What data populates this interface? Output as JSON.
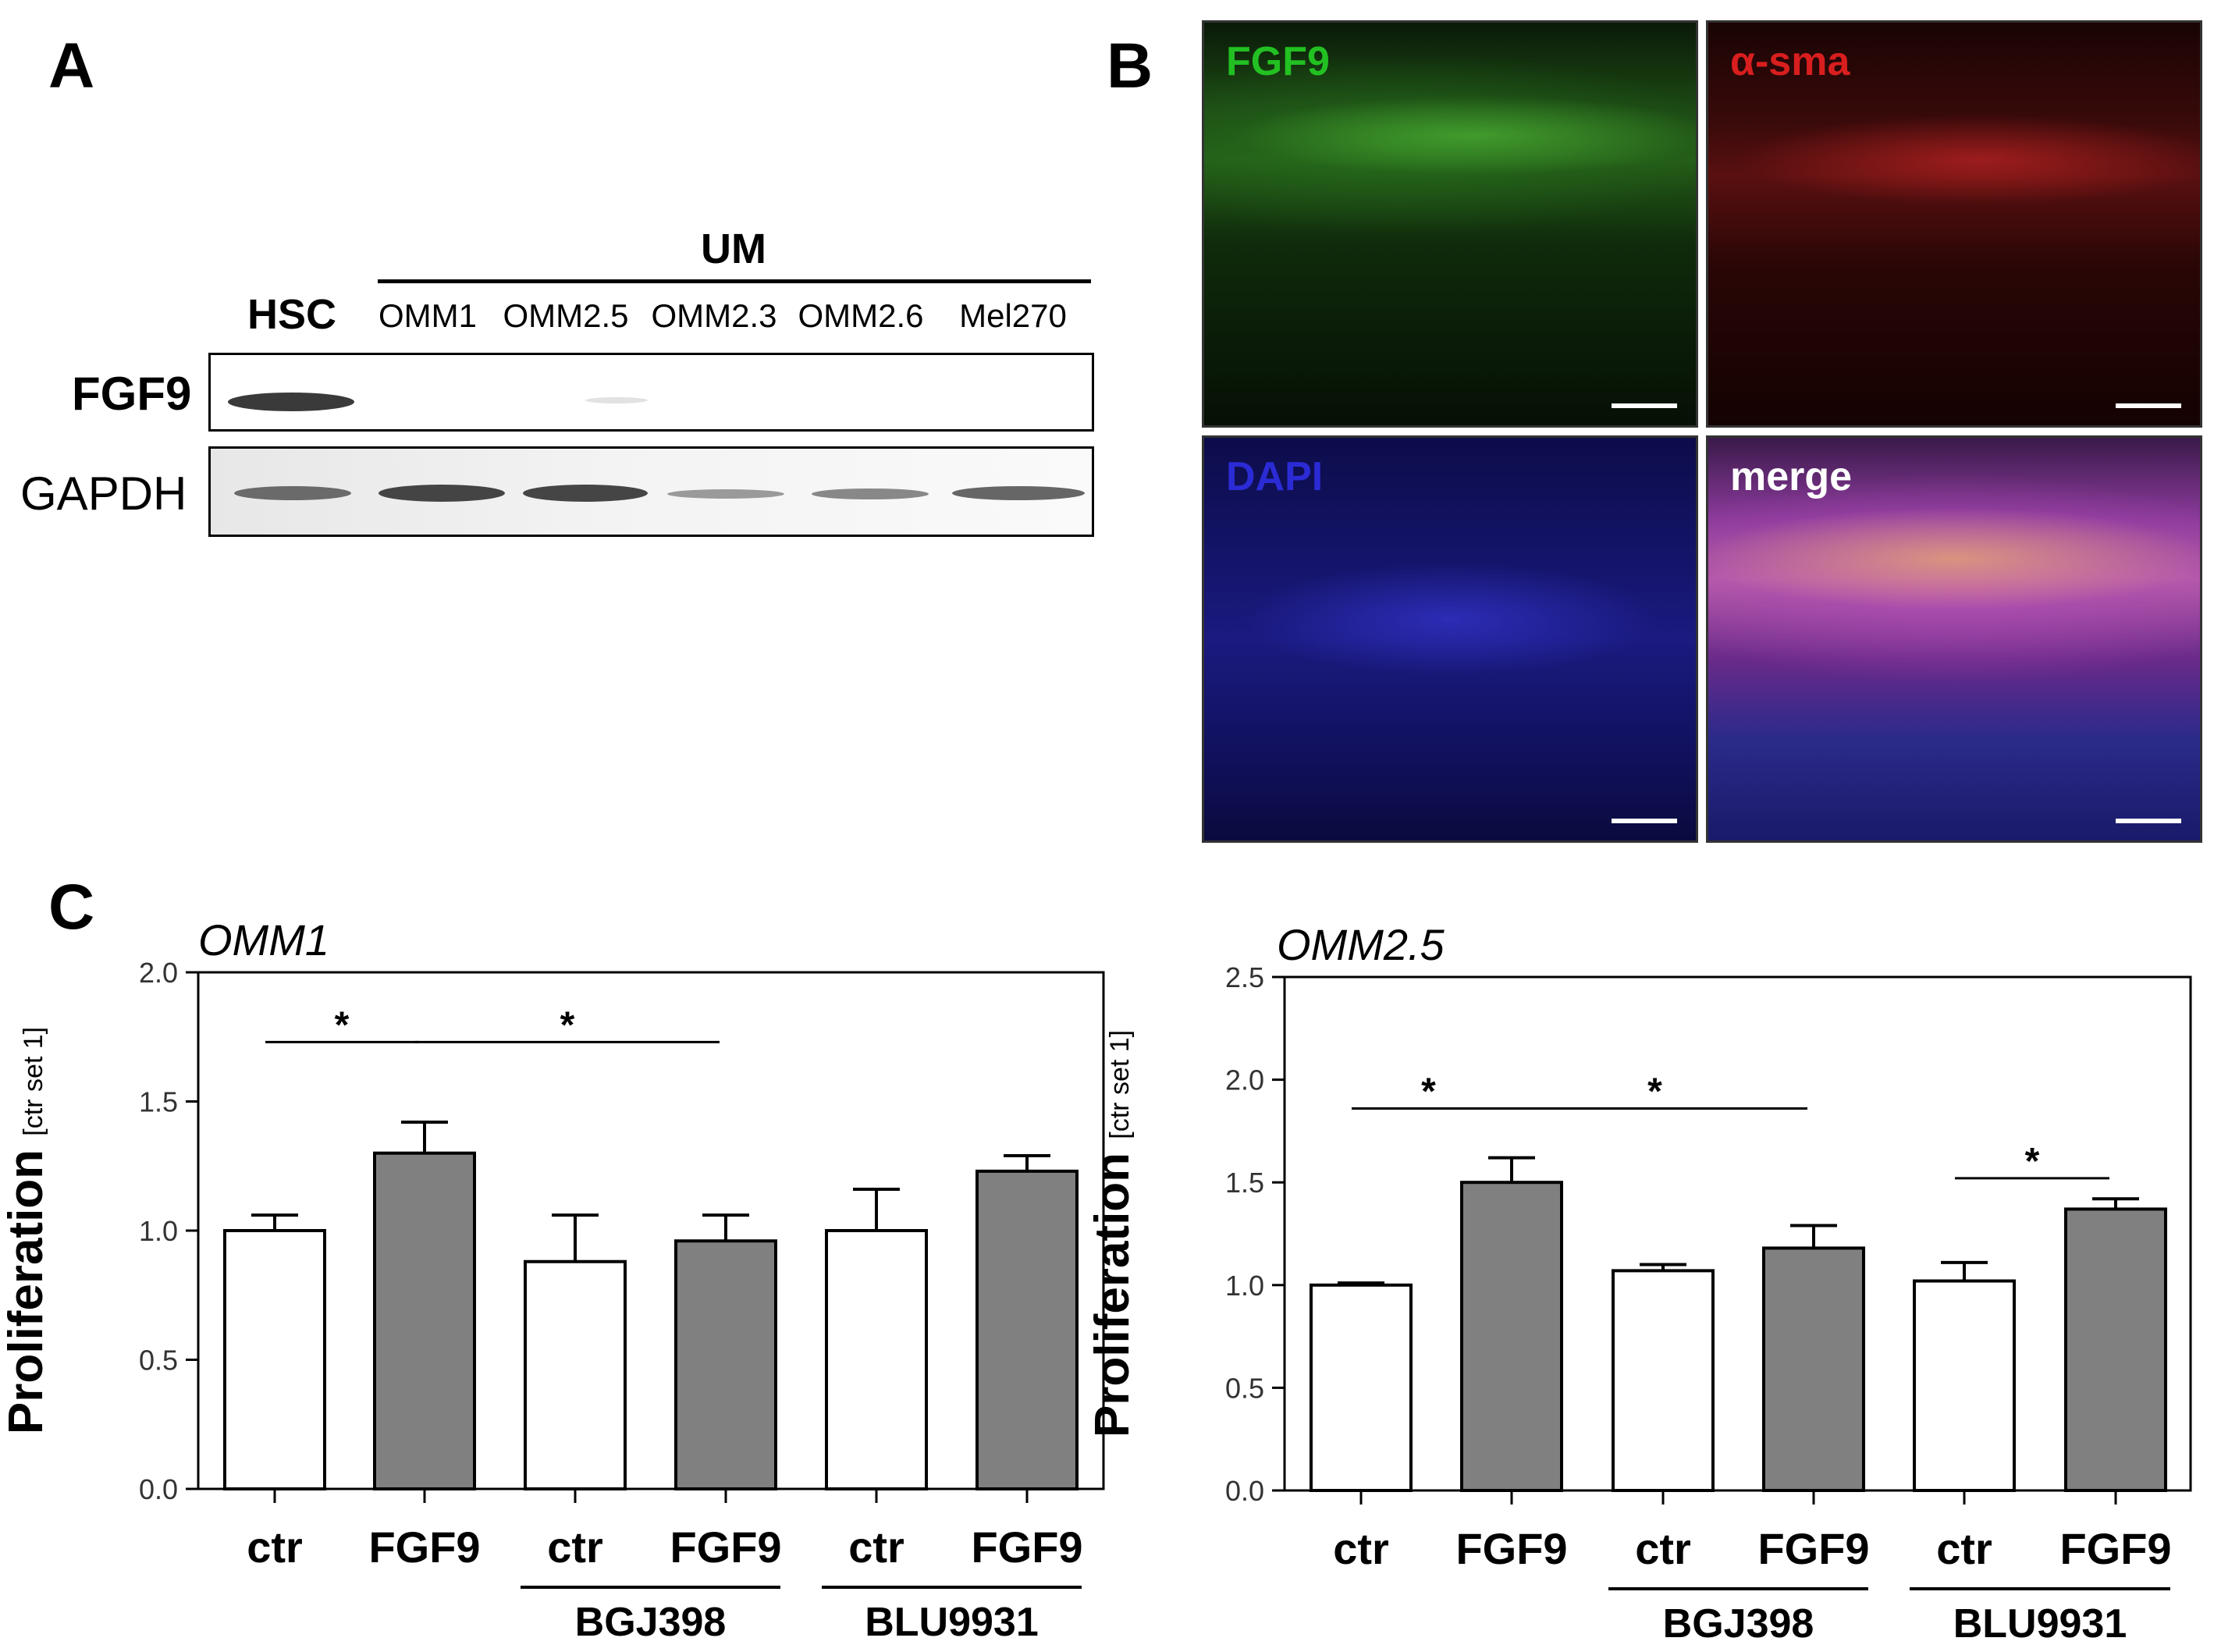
{
  "panel_labels": {
    "a": "A",
    "b": "B",
    "c": "C"
  },
  "panel_a": {
    "group_label": "UM",
    "lanes": [
      "HSC",
      "OMM1",
      "OMM2.5",
      "OMM2.3",
      "OMM2.6",
      "Mel270"
    ],
    "rows": [
      "FGF9",
      "GAPDH"
    ]
  },
  "panel_b": {
    "tiles": [
      {
        "label": "FGF9",
        "label_color": "#22c022"
      },
      {
        "label": "α-sma",
        "label_color": "#d81e1e"
      },
      {
        "label": "DAPI",
        "label_color": "#2b2bd6"
      },
      {
        "label": "merge",
        "label_color": "#ffffff"
      }
    ]
  },
  "chart_data": [
    {
      "type": "bar",
      "title": "OMM1",
      "ylabel": "Proliferation [ctr set 1]",
      "ylabel_main": "Proliferation",
      "ylabel_unit": "[ctr set 1]",
      "ylim": [
        0,
        2.0
      ],
      "yticks": [
        "0.0",
        "0.5",
        "1.0",
        "1.5",
        "2.0"
      ],
      "categories": [
        "ctr",
        "FGF9",
        "ctr",
        "FGF9",
        "ctr",
        "FGF9"
      ],
      "values": [
        1.0,
        1.3,
        0.88,
        0.96,
        1.0,
        1.23
      ],
      "errors": [
        0.06,
        0.12,
        0.18,
        0.1,
        0.16,
        0.06
      ],
      "fills": [
        "#ffffff",
        "#808080",
        "#ffffff",
        "#808080",
        "#ffffff",
        "#808080"
      ],
      "groups": [
        {
          "label": "BGJ398",
          "bars": [
            2,
            3
          ]
        },
        {
          "label": "BLU9931",
          "bars": [
            4,
            5
          ]
        }
      ],
      "significance": [
        {
          "from": 0,
          "to": 1,
          "y": 1.73,
          "label": "*"
        },
        {
          "from": 1,
          "to": 3,
          "y": 1.73,
          "label": "*"
        }
      ]
    },
    {
      "type": "bar",
      "title": "OMM2.5",
      "ylabel": "Proliferation [ctr set 1]",
      "ylabel_main": "Proliferation",
      "ylabel_unit": "[ctr set 1]",
      "ylim": [
        0,
        2.5
      ],
      "yticks": [
        "0.0",
        "0.5",
        "1.0",
        "1.5",
        "2.0",
        "2.5"
      ],
      "categories": [
        "ctr",
        "FGF9",
        "ctr",
        "FGF9",
        "ctr",
        "FGF9"
      ],
      "values": [
        1.0,
        1.5,
        1.07,
        1.18,
        1.02,
        1.37
      ],
      "errors": [
        0.01,
        0.12,
        0.03,
        0.11,
        0.09,
        0.05
      ],
      "fills": [
        "#ffffff",
        "#808080",
        "#ffffff",
        "#808080",
        "#ffffff",
        "#808080"
      ],
      "groups": [
        {
          "label": "BGJ398",
          "bars": [
            2,
            3
          ]
        },
        {
          "label": "BLU9931",
          "bars": [
            4,
            5
          ]
        }
      ],
      "significance": [
        {
          "from": 0,
          "to": 1,
          "y": 1.86,
          "label": "*"
        },
        {
          "from": 1,
          "to": 3,
          "y": 1.86,
          "label": "*"
        },
        {
          "from": 4,
          "to": 5,
          "y": 1.52,
          "label": "*"
        }
      ]
    }
  ]
}
